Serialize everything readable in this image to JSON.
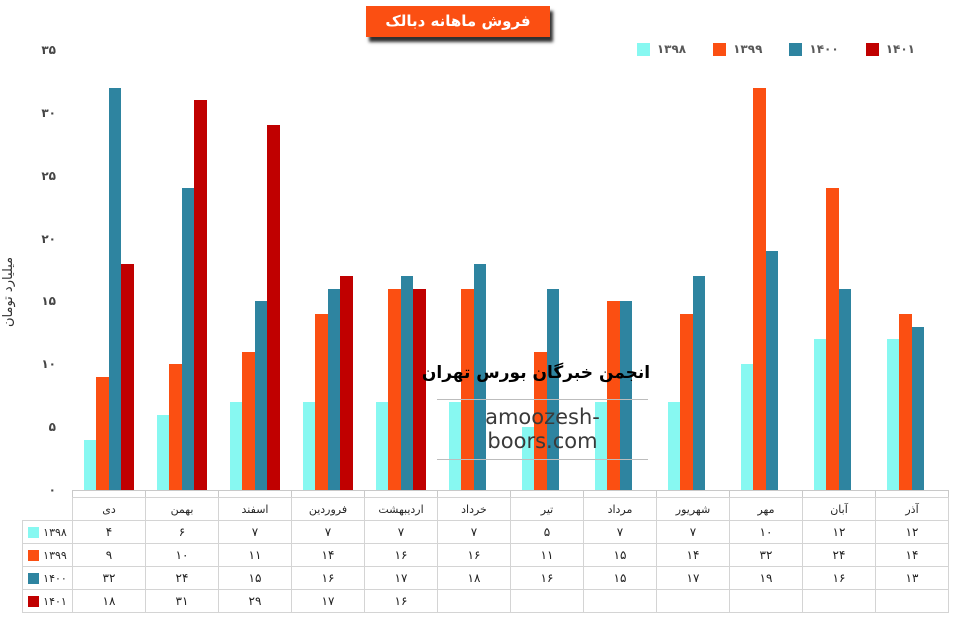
{
  "title": "فروش ماهانه دبالک",
  "watermark": {
    "line1": "انجمن خبرگان بورس تهران",
    "line2": "amoozesh-boors.com"
  },
  "colors": {
    "title_bg": "#FB4F12",
    "axis": "#C9C9C9",
    "table_border": "#D4D4D4",
    "legend_text": "#595959",
    "watermark_line": "#BDBDBD"
  },
  "chart_data": {
    "type": "bar",
    "title": "فروش ماهانه دبالک",
    "xlabel": "",
    "ylabel": "میلیارد تومان",
    "ylim": [
      0,
      35
    ],
    "ytick_step": 5,
    "ytick_labels": [
      "۰",
      "۵",
      "۱۰",
      "۱۵",
      "۲۰",
      "۲۵",
      "۳۰",
      "۳۵"
    ],
    "grid": false,
    "legend_position": "top-right",
    "categories": [
      "دی",
      "بهمن",
      "اسفند",
      "فروردین",
      "اردیبهشت",
      "خرداد",
      "تیر",
      "مرداد",
      "شهریور",
      "مهر",
      "آبان",
      "آذر"
    ],
    "series": [
      {
        "key": "1398",
        "name": "۱۳۹۸",
        "color": "#87F8F1",
        "values": [
          4,
          6,
          7,
          7,
          7,
          7,
          5,
          7,
          7,
          10,
          12,
          12
        ],
        "labels": [
          "۴",
          "۶",
          "۷",
          "۷",
          "۷",
          "۷",
          "۵",
          "۷",
          "۷",
          "۱۰",
          "۱۲",
          "۱۲"
        ]
      },
      {
        "key": "1399",
        "name": "۱۳۹۹",
        "color": "#FB4F12",
        "values": [
          9,
          10,
          11,
          14,
          16,
          16,
          11,
          15,
          14,
          32,
          24,
          14
        ],
        "labels": [
          "۹",
          "۱۰",
          "۱۱",
          "۱۴",
          "۱۶",
          "۱۶",
          "۱۱",
          "۱۵",
          "۱۴",
          "۳۲",
          "۲۴",
          "۱۴"
        ]
      },
      {
        "key": "1400",
        "name": "۱۴۰۰",
        "color": "#2E84A0",
        "values": [
          32,
          24,
          15,
          16,
          17,
          18,
          16,
          15,
          17,
          19,
          16,
          13
        ],
        "labels": [
          "۳۲",
          "۲۴",
          "۱۵",
          "۱۶",
          "۱۷",
          "۱۸",
          "۱۶",
          "۱۵",
          "۱۷",
          "۱۹",
          "۱۶",
          "۱۳"
        ]
      },
      {
        "key": "1401",
        "name": "۱۴۰۱",
        "color": "#C00000",
        "values": [
          18,
          31,
          29,
          17,
          16,
          null,
          null,
          null,
          null,
          null,
          null,
          null
        ],
        "labels": [
          "۱۸",
          "۳۱",
          "۲۹",
          "۱۷",
          "۱۶",
          "",
          "",
          "",
          "",
          "",
          "",
          ""
        ]
      }
    ]
  }
}
